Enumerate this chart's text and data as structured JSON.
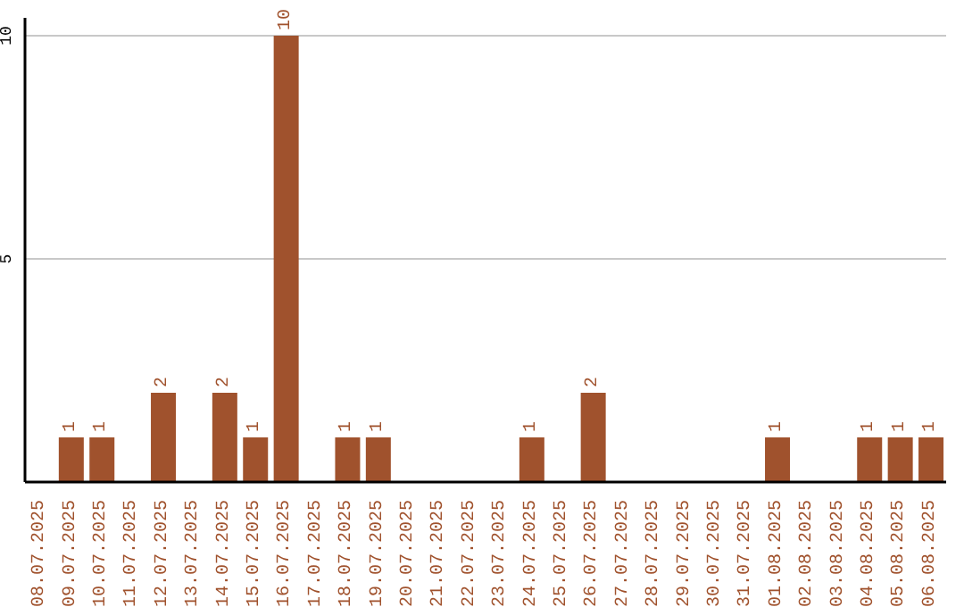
{
  "chart_data": {
    "type": "bar",
    "categories": [
      "08.07.2025",
      "09.07.2025",
      "10.07.2025",
      "11.07.2025",
      "12.07.2025",
      "13.07.2025",
      "14.07.2025",
      "15.07.2025",
      "16.07.2025",
      "17.07.2025",
      "18.07.2025",
      "19.07.2025",
      "20.07.2025",
      "21.07.2025",
      "22.07.2025",
      "23.07.2025",
      "24.07.2025",
      "25.07.2025",
      "26.07.2025",
      "27.07.2025",
      "28.07.2025",
      "29.07.2025",
      "30.07.2025",
      "31.07.2025",
      "01.08.2025",
      "02.08.2025",
      "03.08.2025",
      "04.08.2025",
      "05.08.2025",
      "06.08.2025"
    ],
    "values": [
      0,
      1,
      1,
      0,
      2,
      0,
      2,
      1,
      10,
      0,
      1,
      1,
      0,
      0,
      0,
      0,
      1,
      0,
      2,
      0,
      0,
      0,
      0,
      0,
      1,
      0,
      0,
      1,
      1,
      1
    ],
    "value_labels": [
      null,
      "1",
      "1",
      null,
      "2",
      null,
      "2",
      "1",
      "10",
      null,
      "1",
      "1",
      null,
      null,
      null,
      null,
      "1",
      null,
      "2",
      null,
      null,
      null,
      null,
      null,
      "1",
      null,
      null,
      "1",
      "1",
      "1"
    ],
    "color": "#a0522d",
    "ylim": [
      0,
      10.4
    ],
    "yticks": [
      5,
      10
    ],
    "grid": "y"
  }
}
